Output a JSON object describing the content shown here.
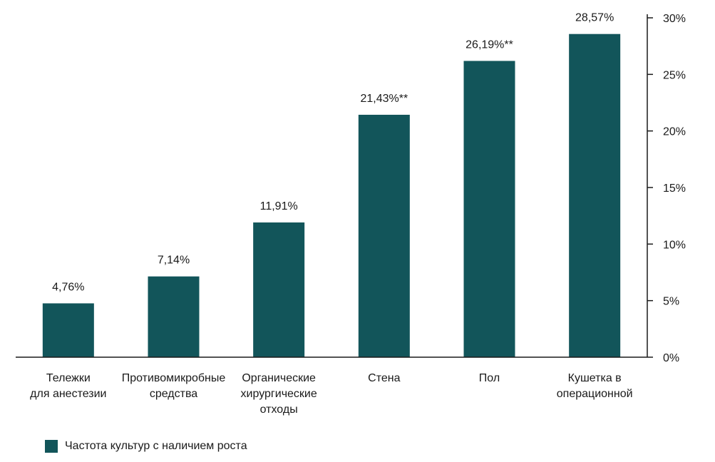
{
  "chart_data": {
    "type": "bar",
    "categories": [
      "Тележки\nдля анестезии",
      "Противомикробные\nсредства",
      "Органические\nхирургические\nотходы",
      "Стена",
      "Пол",
      "Кушетка в\nоперационной"
    ],
    "values": [
      4.76,
      7.14,
      11.91,
      21.43,
      26.19,
      28.57
    ],
    "data_labels": [
      "4,76%",
      "7,14%",
      "11,91%",
      "21,43%**",
      "26,19%**",
      "28,57%"
    ],
    "y_ticks": [
      "0%",
      "5%",
      "10%",
      "15%",
      "20%",
      "25%",
      "30%"
    ],
    "ylim": [
      0,
      30
    ],
    "y_axis_side": "right",
    "grid": false,
    "legend_position": "bottom-left",
    "series": [
      {
        "name": "Частота культур с наличием роста",
        "color": "#12555a"
      }
    ]
  }
}
